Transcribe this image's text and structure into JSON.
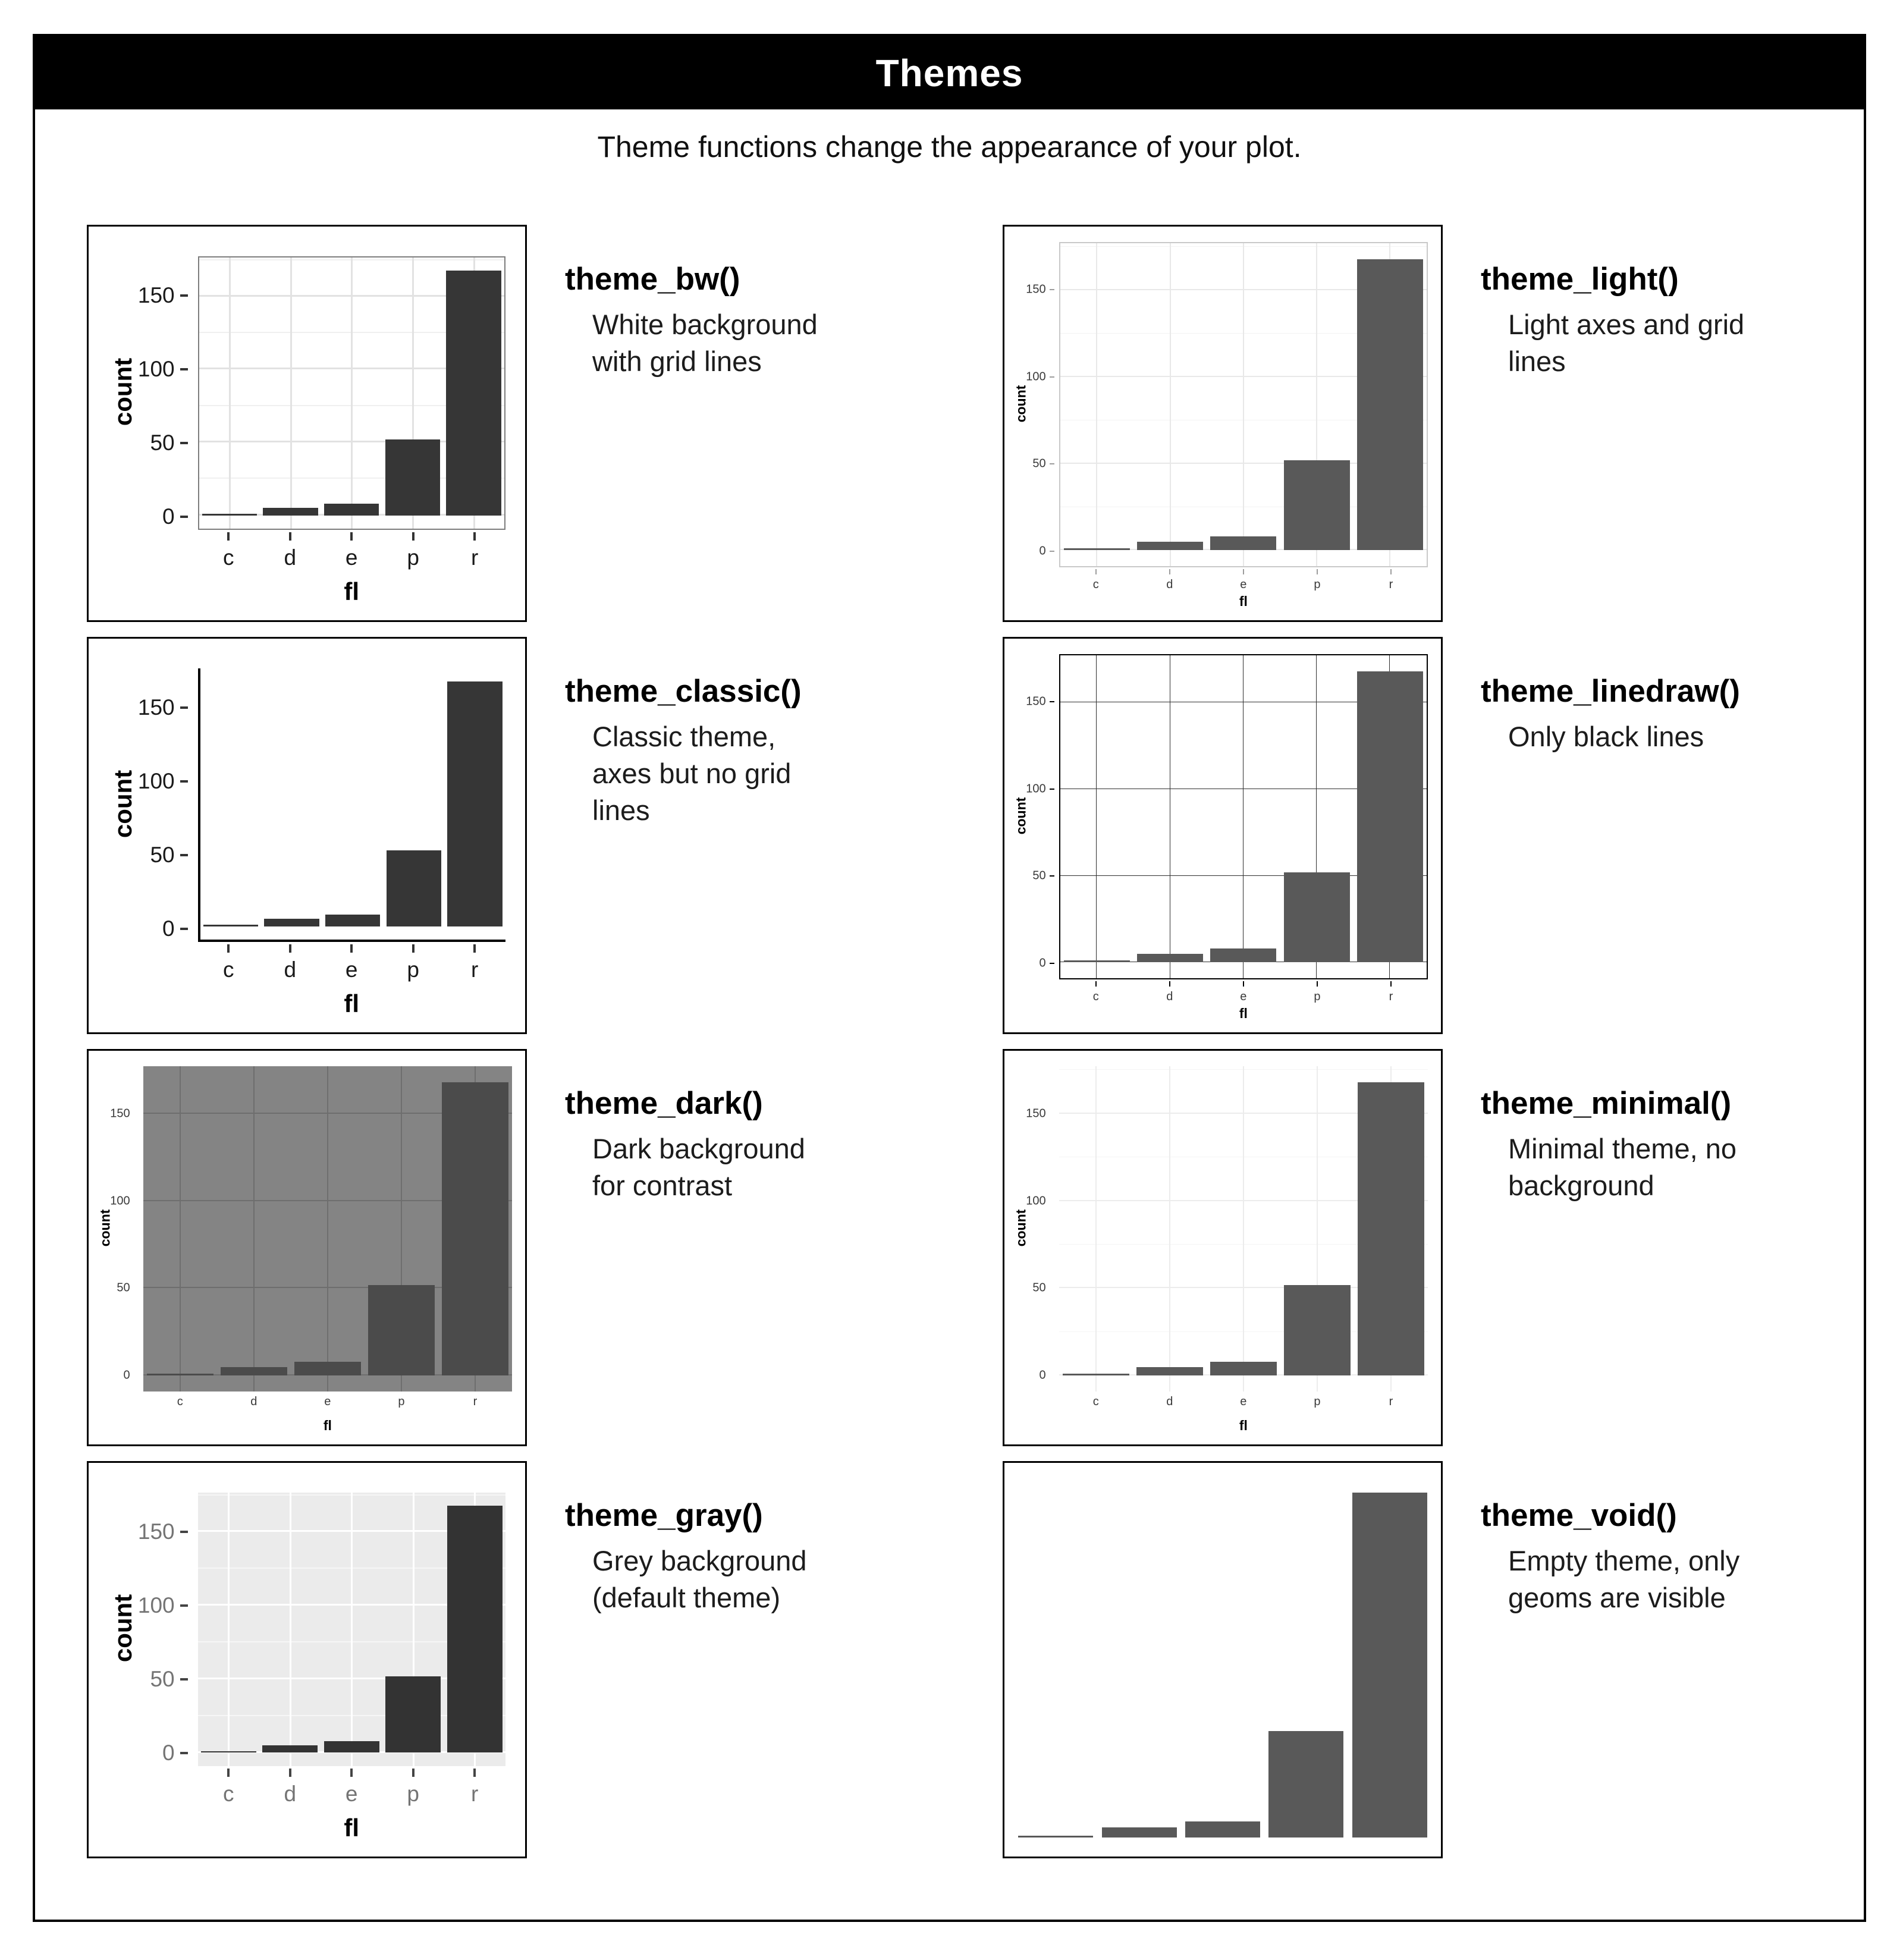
{
  "header": {
    "title": "Themes",
    "subtitle": "Theme functions change the appearance of your plot."
  },
  "chart_data": {
    "type": "bar",
    "categories": [
      "c",
      "d",
      "e",
      "p",
      "r"
    ],
    "values": [
      1,
      5,
      8,
      52,
      168
    ],
    "xlabel": "fl",
    "ylabel": "count",
    "yticks": [
      "150",
      "100",
      "50",
      "0"
    ],
    "ytick_values": [
      150,
      100,
      50,
      0
    ],
    "ylim": [
      0,
      177
    ],
    "grid": "on (theme dependent)",
    "legend": "none",
    "note": "Same bar chart of count by fl rendered in eight ggplot2 themes"
  },
  "themes": [
    {
      "id": "bw",
      "fn": "theme_bw()",
      "desc_lines": [
        "White background",
        "with grid lines"
      ]
    },
    {
      "id": "light",
      "fn": "theme_light()",
      "desc_lines": [
        "Light axes and grid",
        "lines"
      ]
    },
    {
      "id": "classic",
      "fn": "theme_classic()",
      "desc_lines": [
        "Classic theme,",
        "axes but no grid",
        "lines"
      ]
    },
    {
      "id": "linedraw",
      "fn": "theme_linedraw()",
      "desc_lines": [
        "Only black lines"
      ]
    },
    {
      "id": "dark",
      "fn": "theme_dark()",
      "desc_lines": [
        "Dark background",
        "for contrast"
      ]
    },
    {
      "id": "minimal",
      "fn": "theme_minimal()",
      "desc_lines": [
        "Minimal theme, no",
        "background"
      ]
    },
    {
      "id": "gray",
      "fn": "theme_gray()",
      "desc_lines": [
        "Grey background",
        "(default theme)"
      ]
    },
    {
      "id": "void",
      "fn": "theme_void()",
      "desc_lines": [
        "Empty theme, only",
        "geoms are visible"
      ]
    }
  ],
  "colors": {
    "titlebar_bg": "#000000",
    "titlebar_text": "#ffffff",
    "bar_dark": "#363636",
    "bar_grey": "#595959",
    "dark_theme_panel": "#848484",
    "gray_theme_panel": "#ebebeb",
    "bw_panel_border": "#7d7d7d"
  }
}
